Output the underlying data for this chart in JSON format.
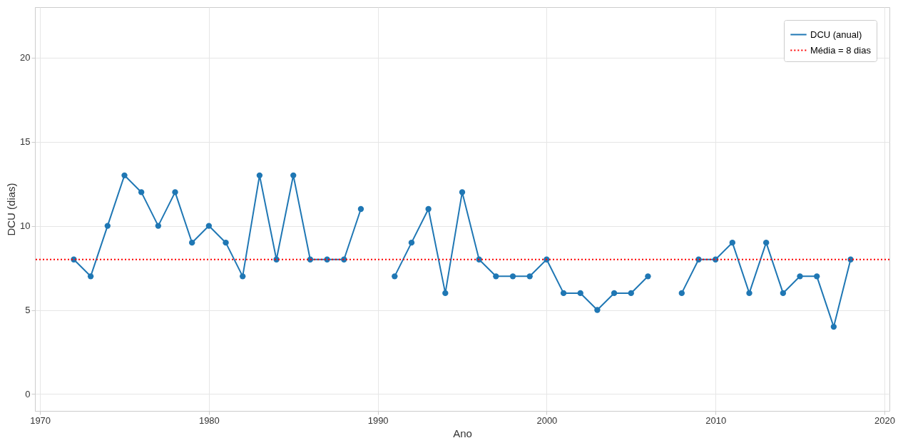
{
  "chart_data": {
    "type": "line",
    "xlabel": "Ano",
    "ylabel": "DCU (dias)",
    "x": [
      1972,
      1973,
      1974,
      1975,
      1976,
      1977,
      1978,
      1979,
      1980,
      1981,
      1982,
      1983,
      1984,
      1985,
      1986,
      1987,
      1988,
      1989,
      1990,
      1991,
      1992,
      1993,
      1994,
      1995,
      1996,
      1997,
      1998,
      1999,
      2000,
      2001,
      2002,
      2003,
      2004,
      2005,
      2006,
      2007,
      2008,
      2009,
      2010,
      2011,
      2012,
      2013,
      2014,
      2015,
      2016,
      2017,
      2018
    ],
    "series": [
      {
        "name": "DCU (anual)",
        "color": "#1f77b4",
        "values": [
          8,
          7,
          10,
          13,
          12,
          10,
          12,
          9,
          10,
          9,
          7,
          13,
          8,
          13,
          8,
          8,
          8,
          11,
          null,
          7,
          9,
          11,
          6,
          12,
          8,
          7,
          7,
          7,
          8,
          6,
          6,
          5,
          6,
          6,
          7,
          null,
          6,
          8,
          8,
          9,
          6,
          9,
          6,
          7,
          7,
          4,
          8
        ]
      }
    ],
    "ref_lines": [
      {
        "axis": "y",
        "value": 8,
        "label": "Média = 8 dias",
        "color": "#ff0000",
        "line_style": "dotted"
      }
    ],
    "xlim": [
      1969.7,
      2020.3
    ],
    "ylim": [
      -1,
      23
    ],
    "xticks": [
      1970,
      1980,
      1990,
      2000,
      2010,
      2020
    ],
    "yticks": [
      0,
      5,
      10,
      15,
      20
    ],
    "grid": true,
    "legend": "top right",
    "marker": "circle",
    "line_style": "solid"
  }
}
